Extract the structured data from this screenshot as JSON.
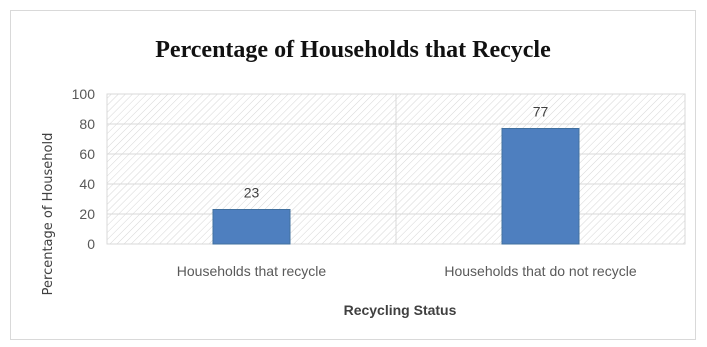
{
  "chart_data": {
    "type": "bar",
    "title": "Percentage of Households that Recycle",
    "xlabel": "Recycling Status",
    "ylabel": "Percentage of Household",
    "categories": [
      "Households that recycle",
      "Households that do not recycle"
    ],
    "values": [
      23,
      77
    ],
    "data_labels": [
      "23",
      "77"
    ],
    "ylim": [
      0,
      100
    ],
    "yticks": [
      "0",
      "20",
      "40",
      "60",
      "80",
      "100"
    ],
    "grid": true,
    "legend": "none",
    "colors": {
      "bar": "#4e7fbf",
      "bar_stroke": "#41709f",
      "grid": "#d9d9d9",
      "hatch": "#d6d6d6"
    }
  }
}
